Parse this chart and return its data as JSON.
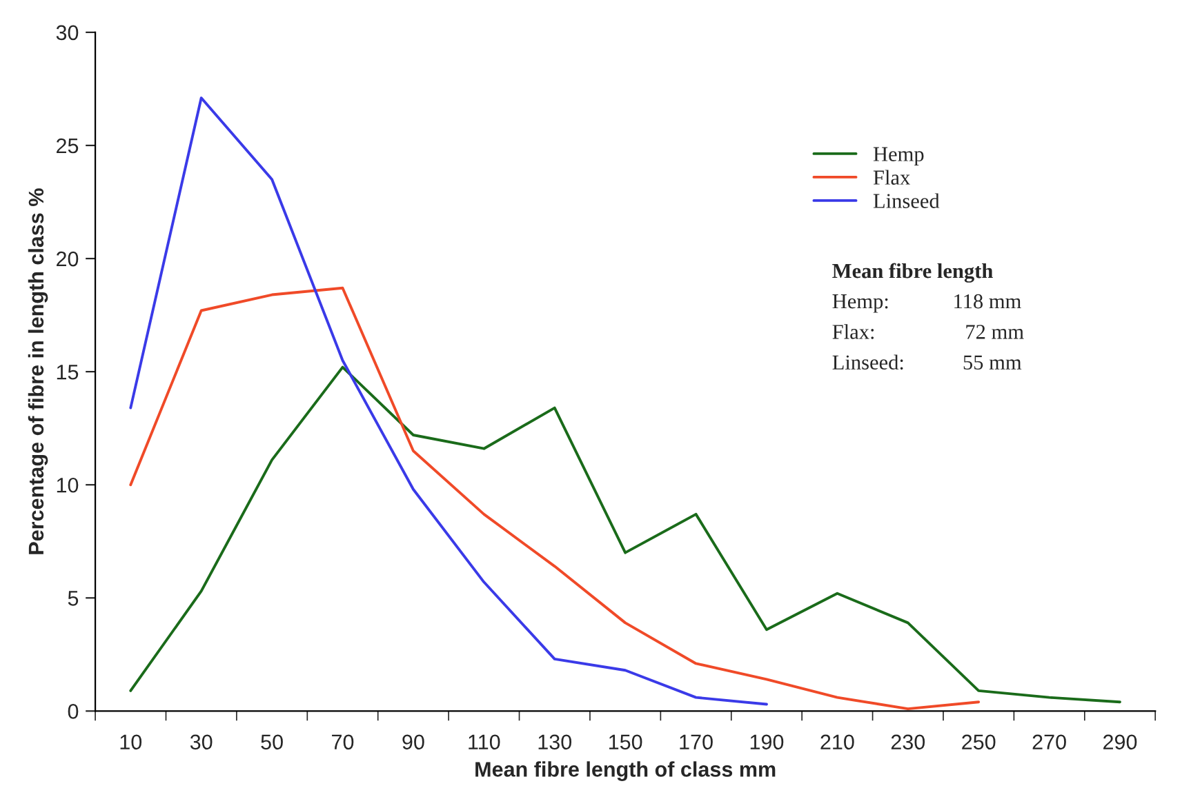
{
  "chart_data": {
    "type": "line",
    "xlabel": "Mean fibre length of class mm",
    "ylabel": "Percentage of fibre in length class %",
    "categories": [
      "10",
      "30",
      "50",
      "70",
      "90",
      "110",
      "130",
      "150",
      "170",
      "190",
      "210",
      "230",
      "250",
      "270",
      "290"
    ],
    "series": [
      {
        "name": "Hemp",
        "color": "#1a6b1a",
        "values": [
          0.9,
          5.3,
          11.1,
          15.2,
          12.2,
          11.6,
          13.4,
          7.0,
          8.7,
          3.6,
          5.2,
          3.9,
          0.9,
          0.6,
          0.4
        ]
      },
      {
        "name": "Flax",
        "color": "#f04a28",
        "values": [
          10.0,
          17.7,
          18.4,
          18.7,
          11.5,
          8.7,
          6.4,
          3.9,
          2.1,
          1.4,
          0.6,
          0.1,
          0.4,
          null,
          null
        ]
      },
      {
        "name": "Linseed",
        "color": "#3a3ae8",
        "values": [
          13.4,
          27.1,
          23.5,
          15.5,
          9.8,
          5.7,
          2.3,
          1.8,
          0.6,
          0.3,
          null,
          null,
          null,
          null,
          null
        ]
      }
    ],
    "ylim": [
      0,
      30
    ],
    "yticks": [
      0,
      5,
      10,
      15,
      20,
      25,
      30
    ],
    "grid": false,
    "legend": "top right",
    "marker": "none",
    "line_style": "solid",
    "annotations": [
      "Mean fibre length",
      "Hemp:            118 mm",
      "Flax:                 72 mm",
      "Linseed:           55 mm"
    ]
  }
}
